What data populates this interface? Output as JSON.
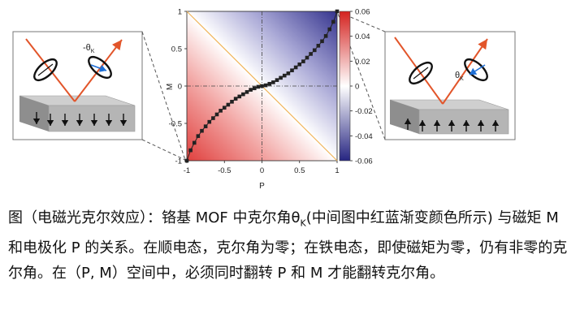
{
  "figure": {
    "left_panel": {
      "angle_label": "-θ",
      "angle_sub": "K"
    },
    "right_panel": {
      "angle_label": "θ",
      "angle_sub": "K"
    }
  },
  "chart_data": {
    "type": "heatmap",
    "title": "",
    "xlabel": "P",
    "ylabel": "M",
    "xlim": [
      -1,
      1
    ],
    "ylim": [
      -1,
      1
    ],
    "x_ticks": [
      "-1",
      "-0.5",
      "0",
      "0.5",
      "1"
    ],
    "y_ticks": [
      "1",
      "0.5",
      "0",
      "-0.5",
      "-1"
    ],
    "colorbar": {
      "range": [
        -0.06,
        0.06
      ],
      "ticks": [
        "0.06",
        "0.04",
        "0.02",
        "0",
        "-0.02",
        "-0.04",
        "-0.06"
      ],
      "high_color": "#dc2626",
      "mid_color": "#ffffff",
      "low_color": "#2b2a8a"
    },
    "grid_lines": {
      "x0": "dash-dot",
      "y0": "dash-dot"
    },
    "series": [
      {
        "type": "line",
        "color": "#f0b45a",
        "x": [
          -1,
          1
        ],
        "y": [
          1,
          -1
        ]
      },
      {
        "type": "scatter-line",
        "color": "#222222",
        "x": [
          -1.0,
          -0.95,
          -0.9,
          -0.85,
          -0.8,
          -0.75,
          -0.7,
          -0.65,
          -0.6,
          -0.55,
          -0.5,
          -0.45,
          -0.4,
          -0.35,
          -0.3,
          -0.25,
          -0.2,
          -0.15,
          -0.1,
          -0.05,
          0.0,
          0.05,
          0.1,
          0.15,
          0.2,
          0.25,
          0.3,
          0.35,
          0.4,
          0.45,
          0.5,
          0.55,
          0.6,
          0.65,
          0.7,
          0.75,
          0.8,
          0.85,
          0.9,
          0.95,
          1.0
        ],
        "y": [
          -1.0,
          -0.86,
          -0.76,
          -0.67,
          -0.6,
          -0.54,
          -0.48,
          -0.43,
          -0.38,
          -0.33,
          -0.29,
          -0.25,
          -0.21,
          -0.17,
          -0.14,
          -0.11,
          -0.08,
          -0.05,
          -0.03,
          -0.01,
          0.0,
          0.01,
          0.03,
          0.05,
          0.08,
          0.11,
          0.14,
          0.17,
          0.21,
          0.25,
          0.29,
          0.33,
          0.38,
          0.43,
          0.48,
          0.54,
          0.6,
          0.67,
          0.76,
          0.86,
          1.0
        ]
      }
    ]
  },
  "caption": {
    "lines": [
      "图（电磁光克尔效应）：铬基 MOF 中克尔角θ",
      "K",
      "(中间图中红蓝渐变颜色所示) 与磁矩 M 和电极化 P 的关系。在顺电态，克尔角为零；在铁电态，即使磁矩为零，仍有非零的克尔角。在（P, M）空间中，必须同时翻转 P 和 M 才能翻转克尔角。"
    ]
  }
}
